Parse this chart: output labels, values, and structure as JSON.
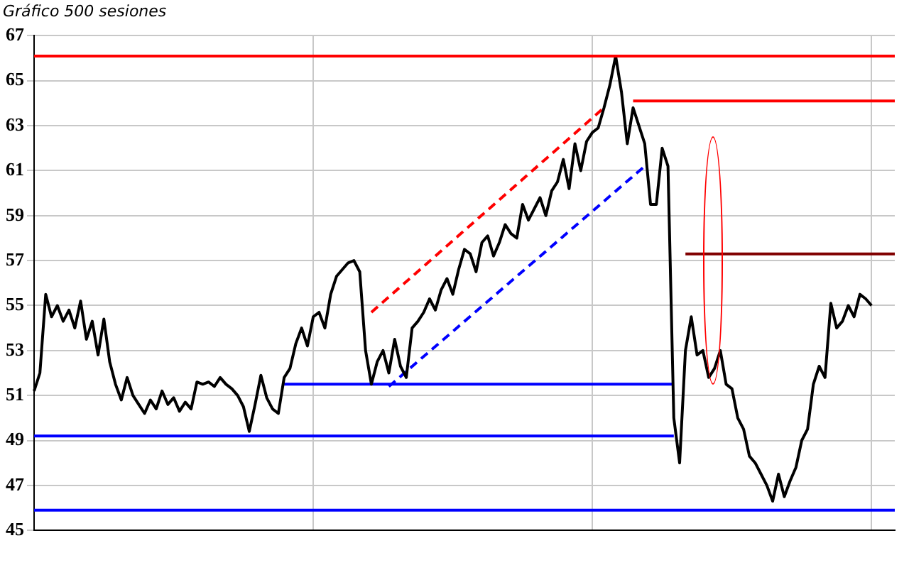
{
  "chart_data": {
    "type": "line",
    "title": "Gráfico 500 sesiones",
    "categories": [
      null,
      null,
      null,
      null,
      null,
      null,
      null,
      null,
      null,
      null,
      null,
      null,
      null,
      null,
      null,
      null,
      null,
      null,
      null,
      null,
      null,
      null,
      null,
      null,
      null,
      null,
      null,
      null,
      null,
      null,
      null,
      null,
      null,
      null,
      null,
      null,
      null,
      null,
      null,
      null,
      null,
      null,
      null,
      null,
      null,
      null,
      null,
      null,
      null,
      null,
      null,
      null,
      null,
      null,
      null,
      null,
      null,
      null,
      null,
      null,
      null,
      null,
      null,
      null,
      null,
      null,
      null,
      null,
      null,
      null,
      null,
      null,
      null,
      null,
      null,
      null,
      null,
      null,
      null,
      null,
      null,
      null,
      null,
      null,
      null,
      null,
      null,
      null,
      null,
      null,
      null,
      null,
      null,
      null,
      null,
      null,
      null,
      null,
      null,
      null,
      null,
      null,
      null,
      null,
      null,
      null,
      null,
      null,
      null,
      null,
      null,
      null,
      null,
      null,
      null,
      null,
      null,
      null,
      null,
      null,
      null,
      null,
      null,
      null,
      null,
      null,
      null,
      null,
      null,
      null,
      null,
      null,
      null,
      null,
      null,
      null,
      null,
      null,
      null,
      null,
      null,
      null,
      null,
      null,
      null,
      null,
      null,
      null,
      null
    ],
    "ylim": [
      45,
      67
    ],
    "yticks": [
      45,
      47,
      49,
      51,
      53,
      55,
      57,
      59,
      61,
      63,
      65,
      67
    ],
    "grid": true,
    "legend": false,
    "marker": "none",
    "series": [
      {
        "color": "#000000",
        "values": [
          51.2,
          52.0,
          55.5,
          54.5,
          55.0,
          54.3,
          54.8,
          54.0,
          55.2,
          53.5,
          54.3,
          52.8,
          54.4,
          52.5,
          51.5,
          50.8,
          51.8,
          51.0,
          50.6,
          50.2,
          50.8,
          50.4,
          51.2,
          50.6,
          50.9,
          50.3,
          50.7,
          50.4,
          51.6,
          51.5,
          51.6,
          51.4,
          51.8,
          51.5,
          51.3,
          51.0,
          50.5,
          49.4,
          50.6,
          51.9,
          50.9,
          50.4,
          50.2,
          51.8,
          52.2,
          53.3,
          54.0,
          53.2,
          54.5,
          54.7,
          54.0,
          55.5,
          56.3,
          56.6,
          56.9,
          57.0,
          56.5,
          53.0,
          51.5,
          52.5,
          53.0,
          52.0,
          53.5,
          52.3,
          51.8,
          54.0,
          54.3,
          54.7,
          55.3,
          54.8,
          55.7,
          56.2,
          55.5,
          56.6,
          57.5,
          57.3,
          56.5,
          57.8,
          58.1,
          57.2,
          57.8,
          58.6,
          58.2,
          58.0,
          59.5,
          58.8,
          59.3,
          59.8,
          59.0,
          60.1,
          60.5,
          61.5,
          60.2,
          62.2,
          61.0,
          62.3,
          62.7,
          62.9,
          63.8,
          64.8,
          66.1,
          64.5,
          62.2,
          63.8,
          63.0,
          62.2,
          59.5,
          59.5,
          62.0,
          61.2,
          50.0,
          48.0,
          53.0,
          54.5,
          52.8,
          53.0,
          51.8,
          52.2,
          53.0,
          51.5,
          51.3,
          50.0,
          49.5,
          48.3,
          48.0,
          47.5,
          47.0,
          46.3,
          47.5,
          46.5,
          47.2,
          47.8,
          49.0,
          49.5,
          51.5,
          52.3,
          51.8,
          55.1,
          54.0,
          54.3,
          55.0,
          54.5,
          55.5,
          55.3,
          55.0,
          null,
          null,
          null,
          null
        ]
      },
      {
        "color": "#ff0000",
        "values": [
          null,
          null,
          null,
          null,
          null,
          null,
          null,
          null,
          null,
          null,
          null,
          null,
          null,
          null,
          null,
          null,
          null,
          null,
          null,
          null,
          null,
          null,
          null,
          null,
          null,
          null,
          null,
          null,
          null,
          null,
          null,
          null,
          null,
          null,
          null,
          null,
          null,
          null,
          null,
          null,
          null,
          null,
          null,
          null,
          null,
          null,
          null,
          null,
          null,
          null,
          null,
          null,
          null,
          null,
          null,
          null,
          null,
          null,
          null,
          null,
          null,
          null,
          null,
          null,
          null,
          null,
          null,
          null,
          null,
          null,
          null,
          null,
          null,
          null,
          null,
          null,
          null,
          null,
          null,
          null,
          null,
          null,
          null,
          null,
          null,
          null,
          null,
          null,
          null,
          null,
          null,
          null,
          null,
          null,
          null,
          null,
          null,
          null,
          null,
          null,
          null,
          null,
          null,
          64.1,
          64.1,
          64.1,
          64.1,
          64.1,
          64.1,
          64.1,
          64.1,
          64.1,
          64.1,
          64.1,
          64.1,
          64.1,
          64.1,
          64.1,
          64.1,
          64.1,
          64.1,
          64.1,
          64.1,
          64.1,
          64.1,
          64.1,
          64.1,
          64.1,
          64.1,
          64.1,
          64.1,
          64.1,
          64.1,
          64.1,
          64.1,
          64.1,
          64.1,
          64.1,
          64.1,
          64.1,
          64.1,
          64.1,
          64.1,
          64.1,
          64.1,
          64.1,
          64.1,
          64.1,
          64.1
        ]
      },
      {
        "color": "#800000",
        "values": [
          null,
          null,
          null,
          null,
          null,
          null,
          null,
          null,
          null,
          null,
          null,
          null,
          null,
          null,
          null,
          null,
          null,
          null,
          null,
          null,
          null,
          null,
          null,
          null,
          null,
          null,
          null,
          null,
          null,
          null,
          null,
          null,
          null,
          null,
          null,
          null,
          null,
          null,
          null,
          null,
          null,
          null,
          null,
          null,
          null,
          null,
          null,
          null,
          null,
          null,
          null,
          null,
          null,
          null,
          null,
          null,
          null,
          null,
          null,
          null,
          null,
          null,
          null,
          null,
          null,
          null,
          null,
          null,
          null,
          null,
          null,
          null,
          null,
          null,
          null,
          null,
          null,
          null,
          null,
          null,
          null,
          null,
          null,
          null,
          null,
          null,
          null,
          null,
          null,
          null,
          null,
          null,
          null,
          null,
          null,
          null,
          null,
          null,
          null,
          null,
          null,
          null,
          null,
          null,
          null,
          null,
          null,
          null,
          null,
          null,
          null,
          null,
          57.3,
          57.3,
          57.3,
          57.3,
          57.3,
          57.3,
          57.3,
          57.3,
          57.3,
          57.3,
          57.3,
          57.3,
          57.3,
          57.3,
          57.3,
          57.3,
          57.3,
          57.3,
          57.3,
          57.3,
          57.3,
          57.3,
          57.3,
          57.3,
          57.3,
          57.3,
          57.3,
          57.3,
          57.3,
          57.3,
          57.3,
          57.3,
          57.3,
          57.3,
          57.3,
          57.3,
          57.3
        ]
      },
      {
        "color": "#0000ff",
        "values": [
          null,
          null,
          null,
          null,
          null,
          null,
          null,
          null,
          null,
          null,
          null,
          null,
          null,
          null,
          null,
          null,
          null,
          null,
          null,
          null,
          null,
          null,
          null,
          null,
          null,
          null,
          null,
          null,
          null,
          null,
          null,
          null,
          null,
          null,
          null,
          null,
          null,
          null,
          null,
          null,
          null,
          null,
          null,
          51.5,
          51.5,
          51.5,
          51.5,
          51.5,
          51.5,
          51.5,
          51.5,
          51.5,
          51.5,
          51.5,
          51.5,
          51.5,
          51.5,
          51.5,
          51.5,
          51.5,
          51.5,
          51.5,
          51.5,
          51.5,
          51.5,
          51.5,
          51.5,
          51.5,
          51.5,
          51.5,
          51.5,
          51.5,
          51.5,
          51.5,
          51.5,
          51.5,
          51.5,
          51.5,
          51.5,
          51.5,
          51.5,
          51.5,
          51.5,
          51.5,
          51.5,
          51.5,
          51.5,
          51.5,
          51.5,
          51.5,
          51.5,
          51.5,
          51.5,
          51.5,
          51.5,
          51.5,
          51.5,
          51.5,
          51.5,
          51.5,
          51.5,
          51.5,
          51.5,
          51.5,
          51.5,
          51.5,
          51.5,
          51.5,
          51.5,
          51.5,
          51.5,
          null,
          null,
          null,
          null,
          null,
          null,
          null,
          null,
          null,
          null,
          null,
          null,
          null,
          null,
          null,
          null,
          null,
          null,
          null,
          null,
          null,
          null,
          null,
          null,
          null,
          null,
          null,
          null,
          null,
          null,
          null,
          null,
          null,
          null,
          null,
          null,
          null,
          null
        ]
      },
      {
        "color": "#0000ff",
        "values": [
          49.2,
          49.2,
          49.2,
          49.2,
          49.2,
          49.2,
          49.2,
          49.2,
          49.2,
          49.2,
          49.2,
          49.2,
          49.2,
          49.2,
          49.2,
          49.2,
          49.2,
          49.2,
          49.2,
          49.2,
          49.2,
          49.2,
          49.2,
          49.2,
          49.2,
          49.2,
          49.2,
          49.2,
          49.2,
          49.2,
          49.2,
          49.2,
          49.2,
          49.2,
          49.2,
          49.2,
          49.2,
          49.2,
          49.2,
          49.2,
          49.2,
          49.2,
          49.2,
          49.2,
          49.2,
          49.2,
          49.2,
          49.2,
          49.2,
          49.2,
          49.2,
          49.2,
          49.2,
          49.2,
          49.2,
          49.2,
          49.2,
          49.2,
          49.2,
          49.2,
          49.2,
          49.2,
          49.2,
          49.2,
          49.2,
          49.2,
          49.2,
          49.2,
          49.2,
          49.2,
          49.2,
          49.2,
          49.2,
          49.2,
          49.2,
          49.2,
          49.2,
          49.2,
          49.2,
          49.2,
          49.2,
          49.2,
          49.2,
          49.2,
          49.2,
          49.2,
          49.2,
          49.2,
          49.2,
          49.2,
          49.2,
          49.2,
          49.2,
          49.2,
          49.2,
          49.2,
          49.2,
          49.2,
          49.2,
          49.2,
          49.2,
          49.2,
          49.2,
          49.2,
          49.2,
          49.2,
          49.2,
          49.2,
          49.2,
          49.2,
          49.2,
          null,
          null,
          null,
          null,
          null,
          null,
          null,
          null,
          null,
          null,
          null,
          null,
          null,
          null,
          null,
          null,
          null,
          null,
          null,
          null,
          null,
          null,
          null,
          null,
          null,
          null,
          null,
          null,
          null,
          null,
          null,
          null,
          null,
          null,
          null,
          null,
          null,
          null
        ]
      },
      {
        "color": "#ff0000",
        "line_style": "dashed",
        "values": [
          null,
          null,
          null,
          null,
          null,
          null,
          null,
          null,
          null,
          null,
          null,
          null,
          null,
          null,
          null,
          null,
          null,
          null,
          null,
          null,
          null,
          null,
          null,
          null,
          null,
          null,
          null,
          null,
          null,
          null,
          null,
          null,
          null,
          null,
          null,
          null,
          null,
          null,
          null,
          null,
          null,
          null,
          null,
          null,
          null,
          null,
          null,
          null,
          null,
          null,
          null,
          null,
          null,
          null,
          null,
          null,
          null,
          null,
          54.7,
          null,
          null,
          null,
          null,
          null,
          null,
          null,
          null,
          null,
          null,
          null,
          null,
          null,
          null,
          null,
          null,
          null,
          null,
          null,
          null,
          null,
          null,
          null,
          null,
          null,
          null,
          null,
          null,
          null,
          null,
          null,
          null,
          null,
          null,
          null,
          null,
          null,
          null,
          null,
          63.8,
          null,
          null,
          null,
          null,
          null,
          null,
          null,
          null,
          null,
          null,
          null,
          null,
          null,
          null,
          null,
          null,
          null,
          null,
          null,
          null,
          null,
          null,
          null,
          null,
          null,
          null,
          null,
          null,
          null,
          null,
          null,
          null,
          null,
          null,
          null,
          null,
          null,
          null,
          null,
          null,
          null,
          null,
          null,
          null,
          null,
          null,
          null,
          null,
          null,
          null
        ]
      },
      {
        "color": "#0000ff",
        "line_style": "dashed",
        "values": [
          null,
          null,
          null,
          null,
          null,
          null,
          null,
          null,
          null,
          null,
          null,
          null,
          null,
          null,
          null,
          null,
          null,
          null,
          null,
          null,
          null,
          null,
          null,
          null,
          null,
          null,
          null,
          null,
          null,
          null,
          null,
          null,
          null,
          null,
          null,
          null,
          null,
          null,
          null,
          null,
          null,
          null,
          null,
          null,
          null,
          null,
          null,
          null,
          null,
          null,
          null,
          null,
          null,
          null,
          null,
          null,
          null,
          null,
          null,
          null,
          null,
          51.4,
          null,
          null,
          null,
          null,
          null,
          null,
          null,
          null,
          null,
          null,
          null,
          null,
          null,
          null,
          null,
          null,
          null,
          null,
          null,
          null,
          null,
          null,
          null,
          null,
          null,
          null,
          null,
          null,
          null,
          null,
          null,
          null,
          null,
          null,
          null,
          null,
          null,
          null,
          null,
          null,
          null,
          null,
          null,
          61.2,
          null,
          null,
          null,
          null,
          null,
          null,
          null,
          null,
          null,
          null,
          null,
          null,
          null,
          null,
          null,
          null,
          null,
          null,
          null,
          null,
          null,
          null,
          null,
          null,
          null,
          null,
          null,
          null,
          null,
          null,
          null,
          null,
          null,
          null,
          null,
          null,
          null,
          null,
          null,
          null,
          null,
          null,
          null
        ]
      }
    ],
    "ref_lines": [
      {
        "axis": "y",
        "value": 66.1,
        "color": "#ff0000"
      },
      {
        "axis": "y",
        "value": 45.9,
        "color": "#0000ff"
      }
    ]
  }
}
